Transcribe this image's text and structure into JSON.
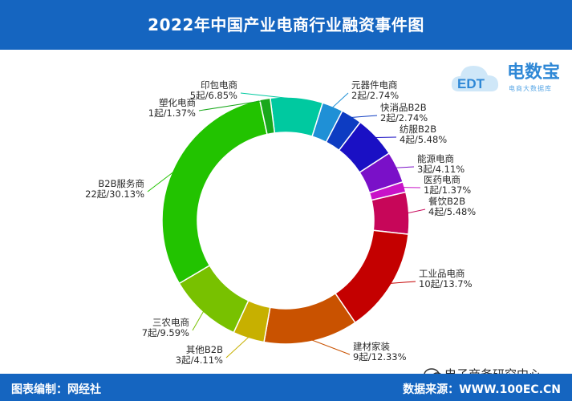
{
  "header": {
    "title": "2022年中国产业电商行业融资事件图"
  },
  "footer": {
    "left": "图表编制：网经社",
    "right": "数据来源：WWW.100EC.CN"
  },
  "logo": {
    "name": "电数宝",
    "subtitle": "电商大数据库",
    "mark": "EDT"
  },
  "watermark": {
    "text": "电子商务研究中心"
  },
  "colors": {
    "header_bg": "#1565c0",
    "text": "#2a2a2a"
  },
  "chart_data": {
    "type": "pie",
    "variant": "donut",
    "slices": [
      {
        "name": "印包电商",
        "count_label": "5起/6.85%",
        "count": 5,
        "percent": 6.85,
        "color": "#00c9a0"
      },
      {
        "name": "元器件电商",
        "count_label": "2起/2.74%",
        "count": 2,
        "percent": 2.74,
        "color": "#1f90d6"
      },
      {
        "name": "快消品B2B",
        "count_label": "2起/2.74%",
        "count": 2,
        "percent": 2.74,
        "color": "#0d3cc2"
      },
      {
        "name": "纺服B2B",
        "count_label": "4起/5.48%",
        "count": 4,
        "percent": 5.48,
        "color": "#1a10c4"
      },
      {
        "name": "能源电商",
        "count_label": "3起/4.11%",
        "count": 3,
        "percent": 4.11,
        "color": "#7a10c8"
      },
      {
        "name": "医药电商",
        "count_label": "1起/1.37%",
        "count": 1,
        "percent": 1.37,
        "color": "#c812c8"
      },
      {
        "name": "餐饮B2B",
        "count_label": "4起/5.48%",
        "count": 4,
        "percent": 5.48,
        "color": "#c70659"
      },
      {
        "name": "工业品电商",
        "count_label": "10起/13.7%",
        "count": 10,
        "percent": 13.7,
        "color": "#c40000"
      },
      {
        "name": "建材家装",
        "count_label": "9起/12.33%",
        "count": 9,
        "percent": 12.33,
        "color": "#c95200"
      },
      {
        "name": "其他B2B",
        "count_label": "3起/4.11%",
        "count": 3,
        "percent": 4.11,
        "color": "#c7b000"
      },
      {
        "name": "三农电商",
        "count_label": "7起/9.59%",
        "count": 7,
        "percent": 9.59,
        "color": "#78c100"
      },
      {
        "name": "B2B服务商",
        "count_label": "22起/30.13%",
        "count": 22,
        "percent": 30.13,
        "color": "#22c300"
      },
      {
        "name": "塑化电商",
        "count_label": "1起/1.37%",
        "count": 1,
        "percent": 1.37,
        "color": "#19a81b"
      }
    ]
  }
}
